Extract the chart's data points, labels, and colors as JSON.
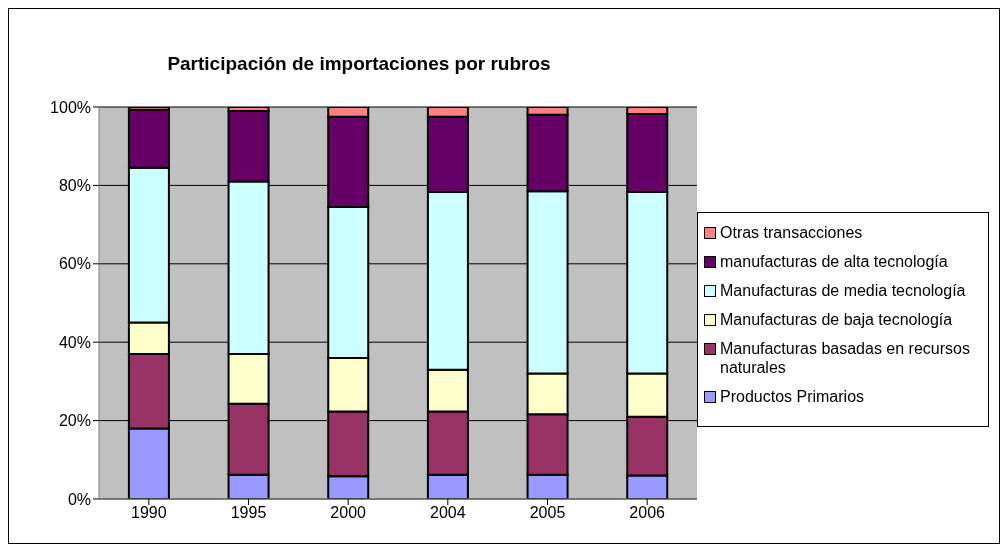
{
  "chart_data": {
    "type": "bar",
    "title": "Participación de importaciones por rubros",
    "categories": [
      "1990",
      "1995",
      "2000",
      "2004",
      "2005",
      "2006"
    ],
    "stacked": true,
    "ylim": [
      0,
      100
    ],
    "yticks": [
      {
        "value": 0,
        "label": "0%"
      },
      {
        "value": 20,
        "label": "20%"
      },
      {
        "value": 40,
        "label": "40%"
      },
      {
        "value": 60,
        "label": "60%"
      },
      {
        "value": 80,
        "label": "80%"
      },
      {
        "value": 100,
        "label": "100%"
      }
    ],
    "grid": "y",
    "legend": "right",
    "series": [
      {
        "name": "Productos Primarios",
        "color": "#9999ff",
        "values": [
          18,
          6.2,
          5.8,
          6.2,
          6.2,
          6
        ]
      },
      {
        "name": "Manufacturas basadas en recursos naturales",
        "color": "#993366",
        "values": [
          19,
          18.1,
          16.5,
          16.1,
          15.4,
          15
        ]
      },
      {
        "name": "Manufacturas de baja tecnología",
        "color": "#ffffcc",
        "values": [
          8,
          12.7,
          13.7,
          10.7,
          10.4,
          11
        ]
      },
      {
        "name": "Manufacturas de media tecnología",
        "color": "#ccffff",
        "values": [
          39.5,
          44,
          38.5,
          45.3,
          46.5,
          46.3
        ]
      },
      {
        "name": "manufacturas de alta tecnología",
        "color": "#660066",
        "values": [
          14.8,
          18,
          23,
          19.2,
          19.5,
          19.9
        ]
      },
      {
        "name": "Otras transacciones",
        "color": "#ff8080",
        "values": [
          0.7,
          1,
          2.5,
          2.5,
          2,
          1.8
        ]
      }
    ]
  }
}
